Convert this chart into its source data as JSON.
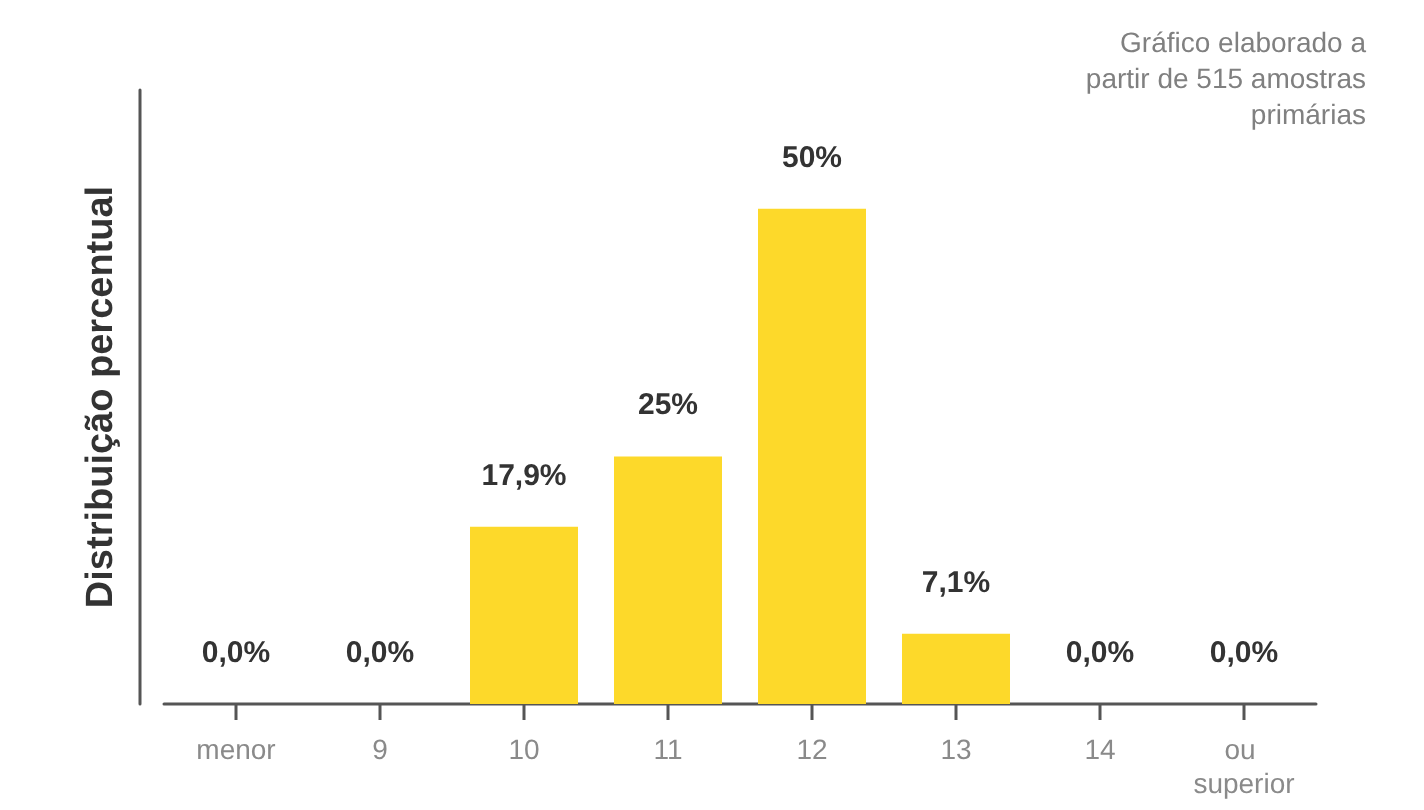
{
  "chart_data": {
    "type": "bar",
    "ylabel": "Distribuição percentual",
    "annotations": [
      "Gráfico elaborado a partir de 515 amostras primárias"
    ],
    "categories": [
      "menor",
      "9",
      "10",
      "11",
      "12",
      "13",
      "14",
      "ou superior"
    ],
    "values": [
      0.0,
      0.0,
      17.9,
      25,
      50,
      7.1,
      0.0,
      0.0
    ],
    "value_labels": [
      "0,0%",
      "0,0%",
      "17,9%",
      "25%",
      "50%",
      "7,1%",
      "0,0%",
      "0,0%"
    ],
    "color": "#fdd92a"
  }
}
